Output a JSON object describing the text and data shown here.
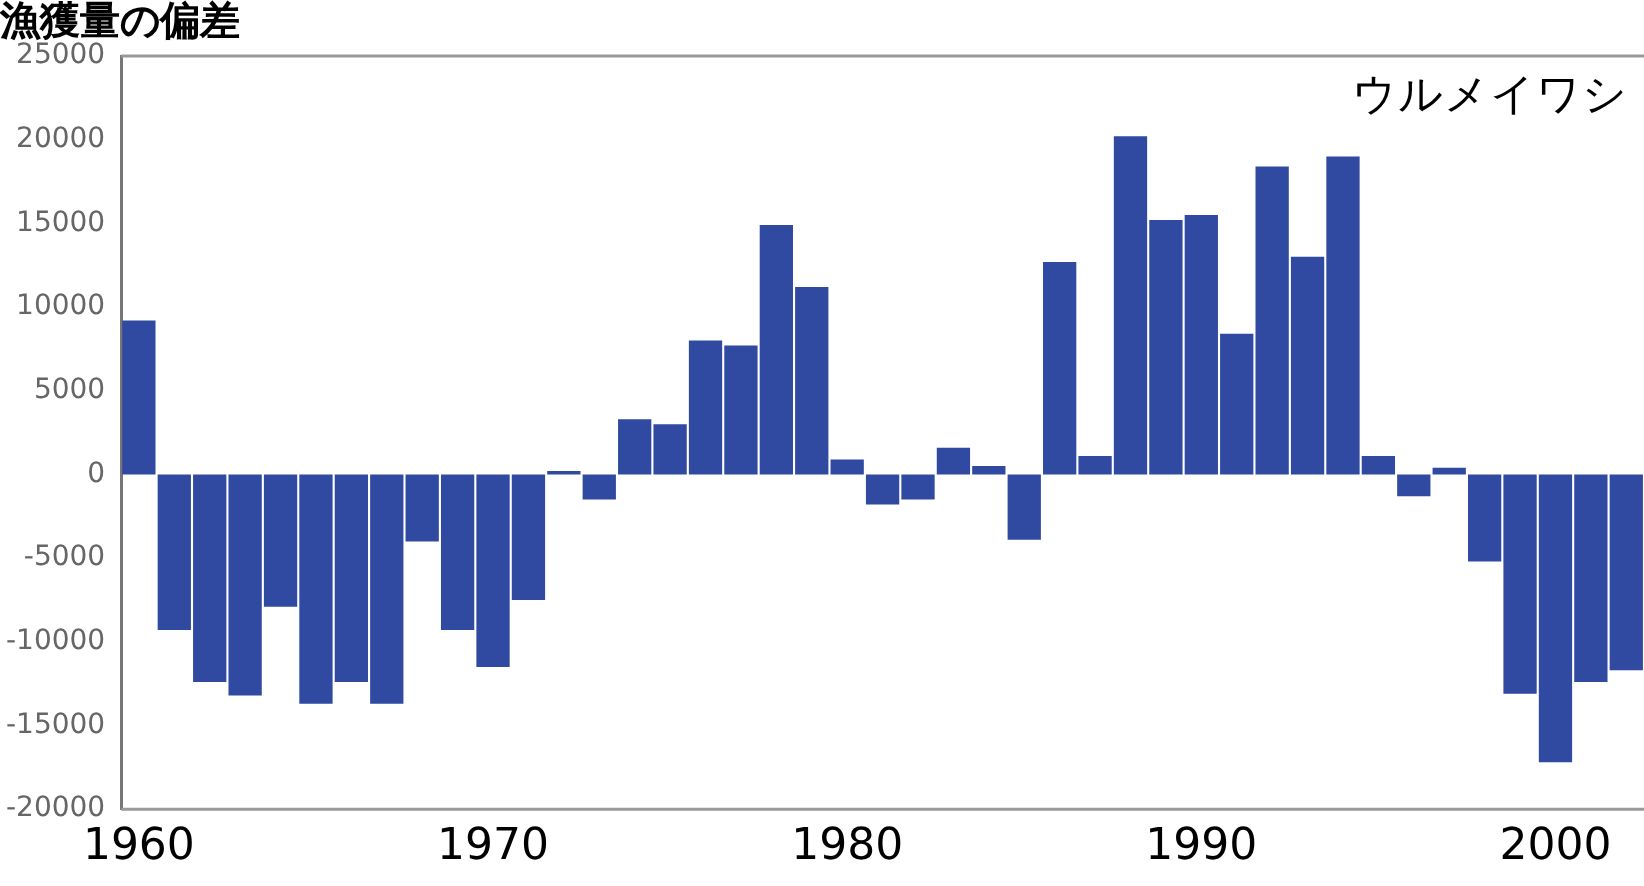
{
  "chart_data": {
    "type": "bar",
    "title": "漁獲量の偏差",
    "annotations": [
      "ウルメイワシ"
    ],
    "categories": [
      "1960",
      null,
      null,
      null,
      null,
      null,
      null,
      null,
      null,
      null,
      "1970",
      null,
      null,
      null,
      null,
      null,
      null,
      null,
      null,
      null,
      "1980",
      null,
      null,
      null,
      null,
      null,
      null,
      null,
      null,
      null,
      "1990",
      null,
      null,
      null,
      null,
      null,
      null,
      null,
      null,
      null,
      "2000",
      null,
      null
    ],
    "values": [
      9200,
      -9300,
      -12400,
      -13200,
      -7900,
      -13700,
      -12400,
      -13700,
      -4000,
      -9300,
      -11500,
      -7500,
      200,
      -1500,
      3300,
      3000,
      8000,
      7700,
      14900,
      11200,
      900,
      -1800,
      -1500,
      1600,
      500,
      -3900,
      12700,
      1100,
      20200,
      15200,
      15500,
      8400,
      18400,
      13000,
      19000,
      1100,
      -1300,
      400,
      -5200,
      -13100,
      -17200,
      -12400,
      -11700
    ],
    "color": "#2f4aa0",
    "ylim": [
      -20000,
      25000
    ],
    "yticks": [
      -20000,
      -15000,
      -10000,
      -5000,
      0,
      5000,
      10000,
      15000,
      20000,
      25000
    ],
    "grid": false,
    "legend": false
  }
}
